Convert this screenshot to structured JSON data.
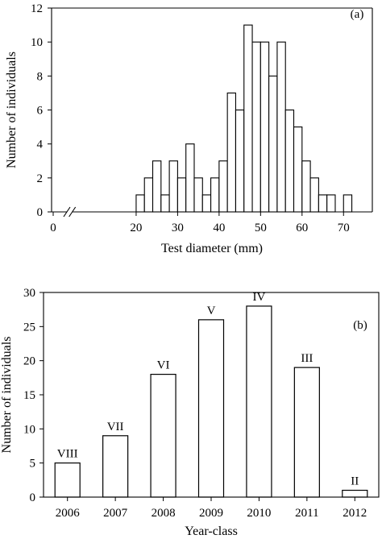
{
  "chart_data": [
    {
      "type": "bar",
      "panel_label": "(a)",
      "xlabel": "Test diameter (mm)",
      "ylabel": "Number of individuals",
      "xlim": [
        0,
        75
      ],
      "ylim": [
        0,
        12
      ],
      "axis_break": "between 0 and 20",
      "bin_width": 2,
      "x_ticks": [
        0,
        20,
        30,
        40,
        50,
        60,
        70
      ],
      "y_ticks": [
        0,
        2,
        4,
        6,
        8,
        10,
        12
      ],
      "bins": [
        {
          "x": 21,
          "value": 1
        },
        {
          "x": 23,
          "value": 2
        },
        {
          "x": 25,
          "value": 3
        },
        {
          "x": 27,
          "value": 1
        },
        {
          "x": 29,
          "value": 3
        },
        {
          "x": 31,
          "value": 2
        },
        {
          "x": 33,
          "value": 4
        },
        {
          "x": 35,
          "value": 2
        },
        {
          "x": 37,
          "value": 1
        },
        {
          "x": 39,
          "value": 2
        },
        {
          "x": 41,
          "value": 3
        },
        {
          "x": 43,
          "value": 7
        },
        {
          "x": 45,
          "value": 6
        },
        {
          "x": 47,
          "value": 11
        },
        {
          "x": 49,
          "value": 10
        },
        {
          "x": 51,
          "value": 10
        },
        {
          "x": 53,
          "value": 8
        },
        {
          "x": 55,
          "value": 10
        },
        {
          "x": 57,
          "value": 6
        },
        {
          "x": 59,
          "value": 5
        },
        {
          "x": 61,
          "value": 3
        },
        {
          "x": 63,
          "value": 2
        },
        {
          "x": 65,
          "value": 1
        },
        {
          "x": 67,
          "value": 1
        },
        {
          "x": 71,
          "value": 1
        }
      ],
      "grid": false
    },
    {
      "type": "bar",
      "panel_label": "(b)",
      "xlabel": "Year-class",
      "ylabel": "Number of individuals",
      "ylim": [
        0,
        30
      ],
      "y_ticks": [
        0,
        5,
        10,
        15,
        20,
        25,
        30
      ],
      "categories": [
        "2006",
        "2007",
        "2008",
        "2009",
        "2010",
        "2011",
        "2012"
      ],
      "values": [
        5,
        9,
        18,
        26,
        28,
        19,
        1
      ],
      "bar_labels": [
        "VIII",
        "VII",
        "VI",
        "V",
        "IV",
        "III",
        "II"
      ],
      "grid": false
    }
  ]
}
